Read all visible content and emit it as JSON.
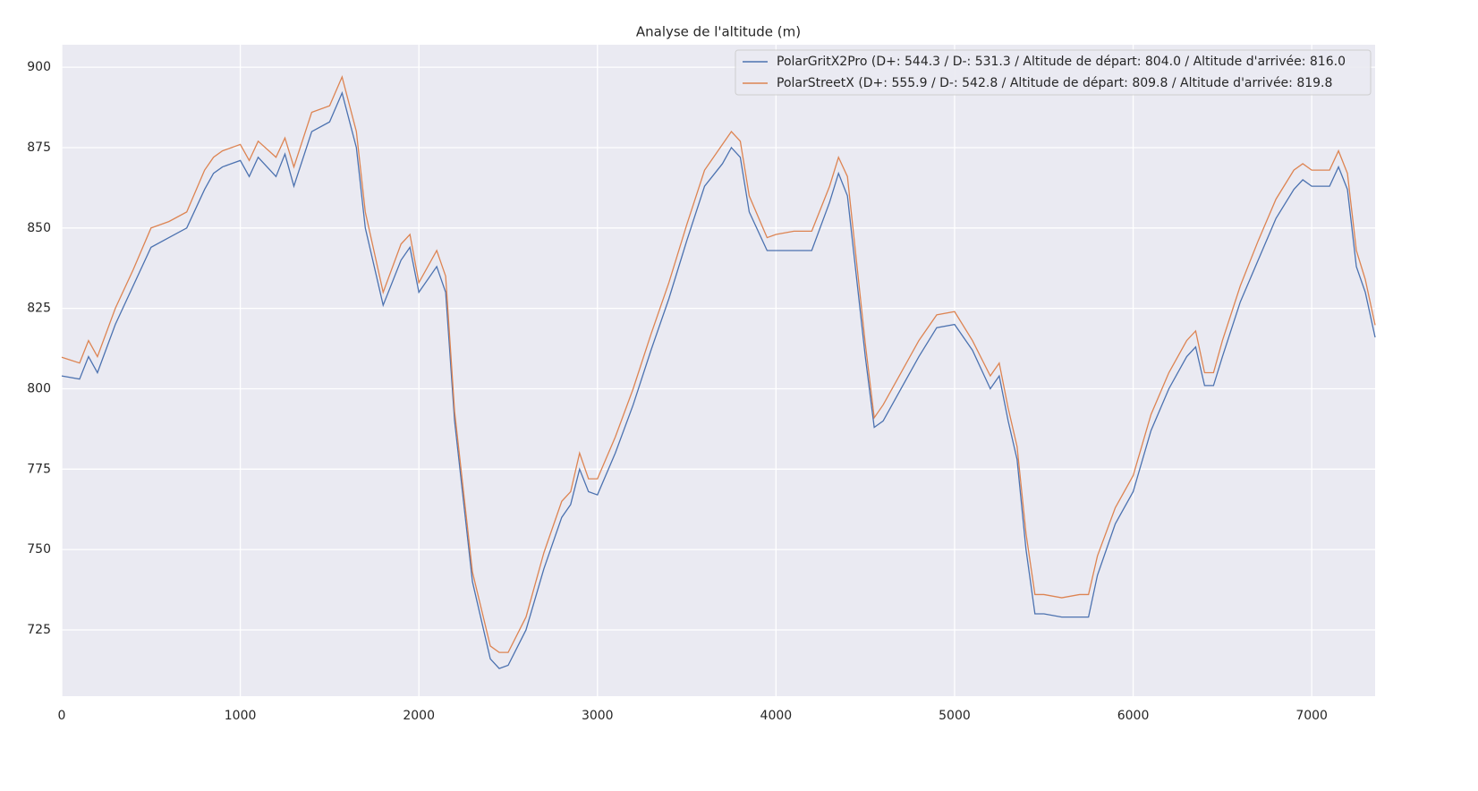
{
  "chart_data": {
    "type": "line",
    "title": "Analyse de l'altitude (m)",
    "x": [
      0,
      100,
      150,
      200,
      300,
      400,
      500,
      600,
      700,
      800,
      850,
      900,
      1000,
      1050,
      1100,
      1200,
      1250,
      1300,
      1400,
      1500,
      1570,
      1650,
      1700,
      1800,
      1900,
      1950,
      2000,
      2100,
      2150,
      2200,
      2300,
      2400,
      2450,
      2500,
      2600,
      2700,
      2800,
      2850,
      2900,
      2950,
      3000,
      3100,
      3200,
      3300,
      3400,
      3500,
      3600,
      3700,
      3750,
      3800,
      3850,
      3950,
      4000,
      4100,
      4200,
      4300,
      4350,
      4400,
      4500,
      4550,
      4600,
      4700,
      4800,
      4900,
      5000,
      5100,
      5200,
      5250,
      5300,
      5350,
      5400,
      5450,
      5500,
      5600,
      5700,
      5750,
      5800,
      5900,
      6000,
      6100,
      6200,
      6300,
      6350,
      6400,
      6450,
      6500,
      6600,
      6700,
      6800,
      6900,
      6950,
      7000,
      7100,
      7150,
      7200,
      7250,
      7300,
      7355
    ],
    "series": [
      {
        "name": "PolarGritX2Pro (D+: 544.3 / D-: 531.3 / Altitude de départ: 804.0 / Altitude d'arrivée: 816.0",
        "color": "#4c72b0",
        "values": [
          804,
          803,
          810,
          805,
          820,
          832,
          844,
          847,
          850,
          862,
          867,
          869,
          871,
          866,
          872,
          866,
          873,
          863,
          880,
          883,
          892,
          875,
          850,
          826,
          840,
          844,
          830,
          838,
          830,
          790,
          740,
          716,
          713,
          714,
          725,
          744,
          760,
          764,
          775,
          768,
          767,
          780,
          795,
          812,
          828,
          846,
          863,
          870,
          875,
          872,
          855,
          843,
          843,
          843,
          843,
          858,
          867,
          860,
          810,
          788,
          790,
          800,
          810,
          819,
          820,
          812,
          800,
          804,
          790,
          778,
          750,
          730,
          730,
          729,
          729,
          729,
          742,
          758,
          768,
          787,
          800,
          810,
          813,
          801,
          801,
          810,
          827,
          840,
          853,
          862,
          865,
          863,
          863,
          869,
          862,
          838,
          830,
          816
        ]
      },
      {
        "name": "PolarStreetX (D+: 555.9 / D-: 542.8 / Altitude de départ: 809.8 / Altitude d'arrivée: 819.8",
        "color": "#dd8452",
        "values": [
          809.8,
          808,
          815,
          810,
          825,
          837,
          850,
          852,
          855,
          868,
          872,
          874,
          876,
          871,
          877,
          872,
          878,
          869,
          886,
          888,
          897,
          880,
          855,
          830,
          845,
          848,
          833,
          843,
          835,
          793,
          743,
          720,
          718,
          718,
          729,
          749,
          765,
          768,
          780,
          772,
          772,
          785,
          800,
          817,
          833,
          851,
          868,
          876,
          880,
          877,
          860,
          847,
          848,
          849,
          849,
          863,
          872,
          866,
          814,
          791,
          795,
          805,
          815,
          823,
          824,
          815,
          804,
          808,
          794,
          782,
          755,
          736,
          736,
          735,
          736,
          736,
          748,
          763,
          773,
          792,
          805,
          815,
          818,
          805,
          805,
          815,
          832,
          846,
          859,
          868,
          870,
          868,
          868,
          874,
          867,
          843,
          834,
          819.8
        ]
      }
    ],
    "xlim": [
      0,
      7355
    ],
    "ylim": [
      704.4,
      907
    ],
    "xticks": [
      0,
      1000,
      2000,
      3000,
      4000,
      5000,
      6000,
      7000
    ],
    "yticks": [
      725,
      750,
      775,
      800,
      825,
      850,
      875,
      900
    ],
    "grid": true,
    "legend": "upper right"
  }
}
